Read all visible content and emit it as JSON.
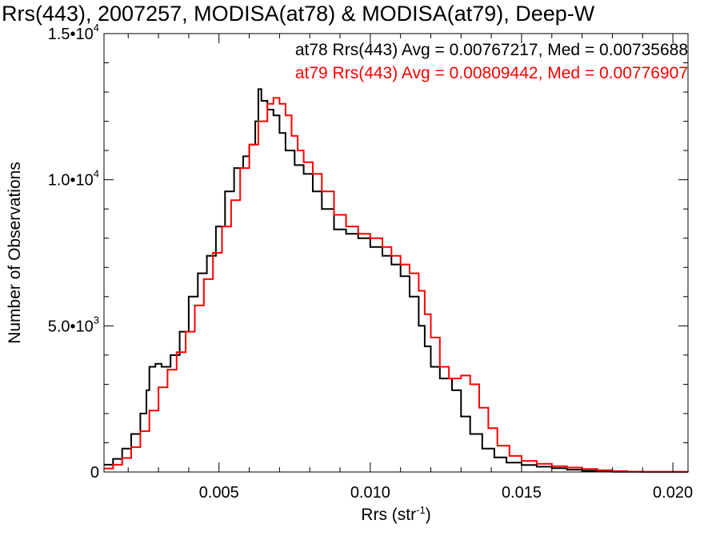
{
  "chart_data": {
    "type": "line",
    "title": "Rrs(443), 2007257, MODISA(at78) & MODISA(at79), Deep-W",
    "xlabel": "Rrs (str",
    "xlabel_sup": "-1",
    "xlabel_close": ")",
    "ylabel": "Number of Observations",
    "xlim": [
      0.0012,
      0.0205
    ],
    "ylim": [
      0,
      15000
    ],
    "x_ticks": [
      {
        "value": 0.005,
        "label": "0.005"
      },
      {
        "value": 0.01,
        "label": "0.010"
      },
      {
        "value": 0.015,
        "label": "0.015"
      },
      {
        "value": 0.02,
        "label": "0.020"
      }
    ],
    "y_ticks": [
      {
        "value": 0,
        "mant": "0",
        "exp": ""
      },
      {
        "value": 5000,
        "mant": "5.0•10",
        "exp": "3"
      },
      {
        "value": 10000,
        "mant": "1.0•10",
        "exp": "4"
      },
      {
        "value": 15000,
        "mant": "1.5•10",
        "exp": "4"
      }
    ],
    "legend_position": "top-right",
    "series": [
      {
        "name": "at78",
        "color": "#000000",
        "legend": "at78 Rrs(443) Avg = 0.00767217, Med = 0.00735688",
        "points": [
          [
            0.0012,
            250
          ],
          [
            0.0015,
            450
          ],
          [
            0.0018,
            800
          ],
          [
            0.0021,
            1300
          ],
          [
            0.0024,
            2000
          ],
          [
            0.0026,
            2800
          ],
          [
            0.0027,
            3600
          ],
          [
            0.0029,
            3700
          ],
          [
            0.0031,
            3600
          ],
          [
            0.0034,
            4000
          ],
          [
            0.0037,
            4800
          ],
          [
            0.004,
            6000
          ],
          [
            0.0043,
            6800
          ],
          [
            0.0046,
            7400
          ],
          [
            0.0049,
            8400
          ],
          [
            0.0052,
            9600
          ],
          [
            0.0055,
            10400
          ],
          [
            0.0058,
            10800
          ],
          [
            0.006,
            11200
          ],
          [
            0.0062,
            12000
          ],
          [
            0.0063,
            13100
          ],
          [
            0.0064,
            12700
          ],
          [
            0.0066,
            12400
          ],
          [
            0.0068,
            12200
          ],
          [
            0.007,
            11600
          ],
          [
            0.0072,
            11000
          ],
          [
            0.0075,
            10500
          ],
          [
            0.0078,
            10200
          ],
          [
            0.0081,
            9600
          ],
          [
            0.0084,
            9000
          ],
          [
            0.0088,
            8300
          ],
          [
            0.0092,
            8150
          ],
          [
            0.0096,
            8000
          ],
          [
            0.01,
            7700
          ],
          [
            0.0104,
            7400
          ],
          [
            0.0107,
            7100
          ],
          [
            0.011,
            6700
          ],
          [
            0.0113,
            6000
          ],
          [
            0.0116,
            5000
          ],
          [
            0.0118,
            4300
          ],
          [
            0.012,
            3600
          ],
          [
            0.0123,
            3200
          ],
          [
            0.0127,
            2800
          ],
          [
            0.013,
            1900
          ],
          [
            0.0133,
            1300
          ],
          [
            0.0137,
            800
          ],
          [
            0.0141,
            500
          ],
          [
            0.0145,
            320
          ],
          [
            0.015,
            240
          ],
          [
            0.0155,
            180
          ],
          [
            0.016,
            130
          ],
          [
            0.0165,
            80
          ],
          [
            0.017,
            40
          ],
          [
            0.0175,
            20
          ],
          [
            0.018,
            8
          ],
          [
            0.019,
            2
          ],
          [
            0.0205,
            0
          ]
        ]
      },
      {
        "name": "at79",
        "color": "#ff0000",
        "legend": "at79 Rrs(443) Avg = 0.00809442, Med = 0.00776907",
        "points": [
          [
            0.0012,
            120
          ],
          [
            0.0015,
            250
          ],
          [
            0.0018,
            480
          ],
          [
            0.0021,
            850
          ],
          [
            0.0024,
            1400
          ],
          [
            0.0027,
            2100
          ],
          [
            0.003,
            2900
          ],
          [
            0.0033,
            3500
          ],
          [
            0.0036,
            4100
          ],
          [
            0.0039,
            4800
          ],
          [
            0.0042,
            5700
          ],
          [
            0.0045,
            6600
          ],
          [
            0.0048,
            7500
          ],
          [
            0.0051,
            8400
          ],
          [
            0.0054,
            9300
          ],
          [
            0.0057,
            10400
          ],
          [
            0.006,
            11200
          ],
          [
            0.0063,
            12000
          ],
          [
            0.0066,
            12600
          ],
          [
            0.0068,
            12800
          ],
          [
            0.007,
            12600
          ],
          [
            0.0072,
            12200
          ],
          [
            0.0074,
            11500
          ],
          [
            0.0076,
            11000
          ],
          [
            0.0078,
            10600
          ],
          [
            0.0081,
            10200
          ],
          [
            0.0084,
            9600
          ],
          [
            0.0088,
            8800
          ],
          [
            0.0092,
            8400
          ],
          [
            0.0096,
            8150
          ],
          [
            0.01,
            8000
          ],
          [
            0.0104,
            7700
          ],
          [
            0.0107,
            7400
          ],
          [
            0.011,
            7100
          ],
          [
            0.0113,
            6800
          ],
          [
            0.0116,
            6200
          ],
          [
            0.0118,
            5400
          ],
          [
            0.012,
            4600
          ],
          [
            0.0123,
            3600
          ],
          [
            0.0126,
            3200
          ],
          [
            0.013,
            3300
          ],
          [
            0.0133,
            3000
          ],
          [
            0.0136,
            2200
          ],
          [
            0.0139,
            1500
          ],
          [
            0.0142,
            900
          ],
          [
            0.0146,
            550
          ],
          [
            0.015,
            380
          ],
          [
            0.0155,
            280
          ],
          [
            0.016,
            200
          ],
          [
            0.0165,
            150
          ],
          [
            0.017,
            100
          ],
          [
            0.0175,
            60
          ],
          [
            0.018,
            30
          ],
          [
            0.0185,
            12
          ],
          [
            0.019,
            5
          ],
          [
            0.0205,
            0
          ]
        ]
      }
    ]
  }
}
